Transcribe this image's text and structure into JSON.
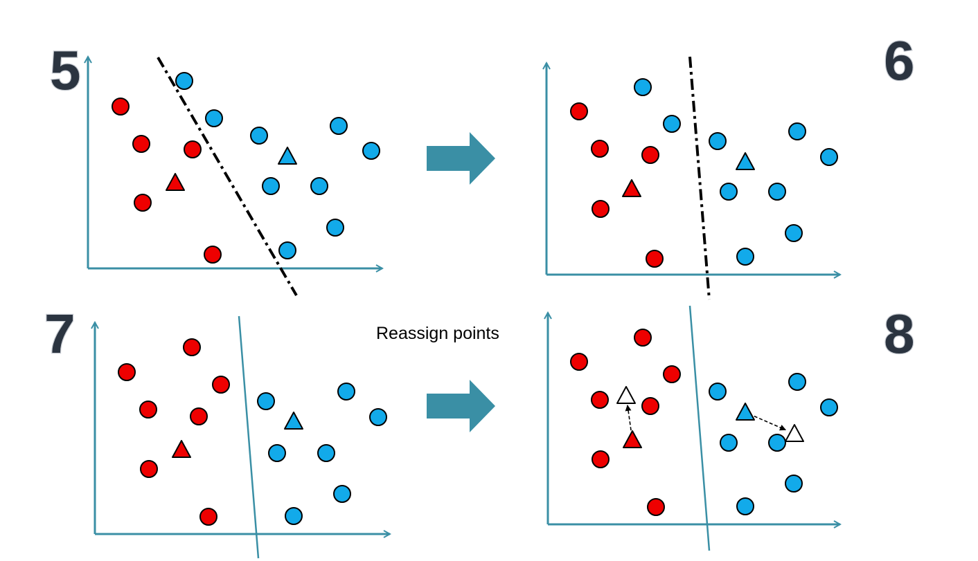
{
  "caption": "Reassign points",
  "colors": {
    "red": "#ee0000",
    "blue": "#12aaea",
    "axis": "#3a8fa5",
    "arrow": "#3a8fa5",
    "outline": "#000000"
  },
  "icons": {
    "step_arrow": "right-arrow-icon",
    "cluster_point": "circle-icon",
    "centroid": "triangle-icon"
  },
  "panels": [
    {
      "number": "5",
      "boundary": "dash-dot",
      "red_points": [
        [
          174,
          154
        ],
        [
          204,
          208
        ],
        [
          278,
          216
        ],
        [
          206,
          293
        ],
        [
          307,
          368
        ]
      ],
      "blue_points": [
        [
          266,
          117
        ],
        [
          309,
          171
        ],
        [
          374,
          196
        ],
        [
          489,
          182
        ],
        [
          536,
          218
        ],
        [
          391,
          269
        ],
        [
          461,
          269
        ],
        [
          484,
          329
        ],
        [
          415,
          362
        ]
      ],
      "red_centroid": [
        253,
        264
      ],
      "blue_centroid": [
        415,
        226
      ]
    },
    {
      "number": "6",
      "boundary": "dash-dot",
      "red_points": [
        [
          836,
          161
        ],
        [
          866,
          215
        ],
        [
          939,
          224
        ],
        [
          867,
          302
        ],
        [
          945,
          374
        ]
      ],
      "blue_points": [
        [
          928,
          126
        ],
        [
          970,
          179
        ],
        [
          1036,
          204
        ],
        [
          1151,
          190
        ],
        [
          1197,
          227
        ],
        [
          1052,
          277
        ],
        [
          1122,
          277
        ],
        [
          1146,
          337
        ],
        [
          1076,
          371
        ]
      ],
      "red_centroid": [
        912,
        273
      ],
      "blue_centroid": [
        1076,
        234
      ]
    },
    {
      "number": "7",
      "boundary": "solid",
      "red_points": [
        [
          277,
          502
        ],
        [
          183,
          538
        ],
        [
          319,
          556
        ],
        [
          214,
          592
        ],
        [
          287,
          602
        ],
        [
          215,
          678
        ],
        [
          301,
          747
        ]
      ],
      "blue_points": [
        [
          384,
          580
        ],
        [
          500,
          566
        ],
        [
          546,
          603
        ],
        [
          400,
          655
        ],
        [
          471,
          655
        ],
        [
          494,
          714
        ],
        [
          424,
          746
        ]
      ],
      "red_centroid": [
        262,
        650
      ],
      "blue_centroid": [
        424,
        609
      ]
    },
    {
      "number": "8",
      "boundary": "solid",
      "red_points": [
        [
          928,
          488
        ],
        [
          836,
          523
        ],
        [
          970,
          541
        ],
        [
          866,
          578
        ],
        [
          939,
          587
        ],
        [
          867,
          664
        ],
        [
          947,
          733
        ]
      ],
      "blue_points": [
        [
          1036,
          566
        ],
        [
          1151,
          552
        ],
        [
          1197,
          589
        ],
        [
          1052,
          640
        ],
        [
          1122,
          640
        ],
        [
          1146,
          699
        ],
        [
          1076,
          732
        ]
      ],
      "red_centroid": [
        913,
        636
      ],
      "blue_centroid": [
        1076,
        596
      ],
      "new_red_centroid": [
        904,
        572
      ],
      "new_blue_centroid": [
        1147,
        627
      ]
    }
  ]
}
